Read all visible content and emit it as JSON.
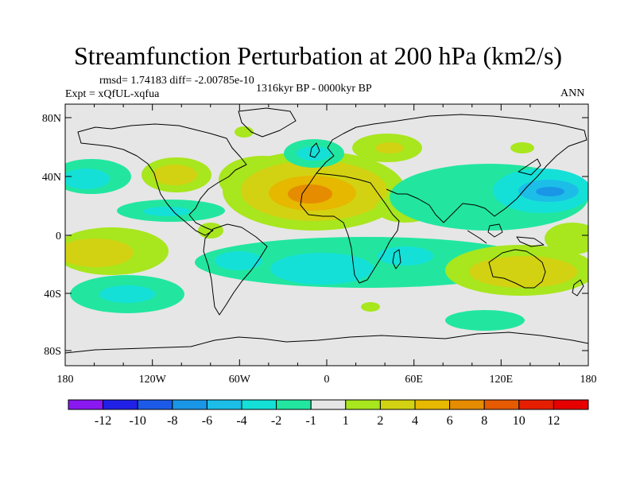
{
  "title": "Streamfunction Perturbation at 200 hPa (km2/s)",
  "stats": "rmsd= 1.74183 diff= -2.00785e-10",
  "experiment": "Expt = xQfUL-xqfua",
  "period": "1316kyr BP - 0000kyr BP",
  "season": "ANN",
  "lat_labels": [
    "80N",
    "40N",
    "0",
    "40S",
    "80S"
  ],
  "lon_labels": [
    "180",
    "120W",
    "60W",
    "0",
    "60E",
    "120E",
    "180"
  ],
  "colorbar": {
    "labels": [
      "-12",
      "-10",
      "-8",
      "-6",
      "-4",
      "-2",
      "-1",
      "1",
      "2",
      "4",
      "6",
      "8",
      "10",
      "12"
    ],
    "colors": [
      "#8a18f0",
      "#2020e6",
      "#1c5ae8",
      "#1a96e6",
      "#1cbee8",
      "#14e0d8",
      "#22e6a0",
      "#e6e6e6",
      "#a8e61e",
      "#d2d212",
      "#e6b800",
      "#e68c00",
      "#e65a00",
      "#e61e00",
      "#e60000"
    ]
  },
  "anomaly_regions": [
    {
      "name": "north-african-high",
      "lon": -10,
      "lat": 28,
      "value": 7
    },
    {
      "name": "north-pacific-low",
      "lon": 155,
      "lat": 30,
      "value": -7
    },
    {
      "name": "australian-high",
      "lon": 140,
      "lat": -23,
      "value": 3
    },
    {
      "name": "south-atlantic-low",
      "lon": -10,
      "lat": -23,
      "value": -3
    },
    {
      "name": "north-atlantic-low",
      "lon": -5,
      "lat": 60,
      "value": -2
    },
    {
      "name": "european-high",
      "lon": 40,
      "lat": 58,
      "value": 2
    },
    {
      "name": "north-american-high",
      "lon": -115,
      "lat": 40,
      "value": 2
    },
    {
      "name": "east-pacific-low",
      "lon": -160,
      "lat": 35,
      "value": -2
    },
    {
      "name": "south-pacific-high",
      "lon": -160,
      "lat": -12,
      "value": 2
    },
    {
      "name": "south-pacific-low",
      "lon": -150,
      "lat": -38,
      "value": -2
    }
  ]
}
